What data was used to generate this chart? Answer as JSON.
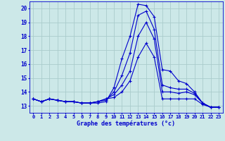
{
  "background_color": "#cce8e8",
  "grid_color": "#aacccc",
  "line_color": "#0000cc",
  "xlabel": "Graphe des températures (°c)",
  "hours": [
    0,
    1,
    2,
    3,
    4,
    5,
    6,
    7,
    8,
    9,
    10,
    11,
    12,
    13,
    14,
    15,
    16,
    17,
    18,
    19,
    20,
    21,
    22,
    23
  ],
  "series": [
    [
      13.5,
      13.3,
      13.5,
      13.4,
      13.3,
      13.3,
      13.2,
      13.2,
      13.2,
      13.3,
      14.3,
      16.4,
      18.0,
      20.3,
      20.2,
      19.4,
      15.6,
      15.5,
      14.8,
      14.6,
      14.0,
      13.2,
      12.9,
      12.9
    ],
    [
      13.5,
      13.3,
      13.5,
      13.4,
      13.3,
      13.3,
      13.2,
      13.2,
      13.3,
      13.4,
      14.0,
      15.2,
      16.8,
      19.5,
      19.8,
      18.5,
      14.5,
      14.3,
      14.2,
      14.2,
      13.9,
      13.2,
      12.9,
      12.9
    ],
    [
      13.5,
      13.3,
      13.5,
      13.4,
      13.3,
      13.3,
      13.2,
      13.2,
      13.3,
      13.5,
      13.8,
      14.5,
      15.5,
      18.0,
      19.0,
      17.8,
      14.0,
      14.0,
      13.9,
      14.0,
      13.8,
      13.2,
      12.9,
      12.9
    ],
    [
      13.5,
      13.3,
      13.5,
      13.4,
      13.3,
      13.3,
      13.2,
      13.2,
      13.3,
      13.5,
      13.6,
      14.0,
      14.8,
      16.5,
      17.5,
      16.5,
      13.5,
      13.5,
      13.5,
      13.5,
      13.5,
      13.1,
      12.9,
      12.9
    ]
  ],
  "ylim": [
    12.5,
    20.5
  ],
  "yticks": [
    13,
    14,
    15,
    16,
    17,
    18,
    19,
    20
  ],
  "xlim": [
    -0.5,
    23.5
  ],
  "xticks": [
    0,
    1,
    2,
    3,
    4,
    5,
    6,
    7,
    8,
    9,
    10,
    11,
    12,
    13,
    14,
    15,
    16,
    17,
    18,
    19,
    20,
    21,
    22,
    23
  ]
}
